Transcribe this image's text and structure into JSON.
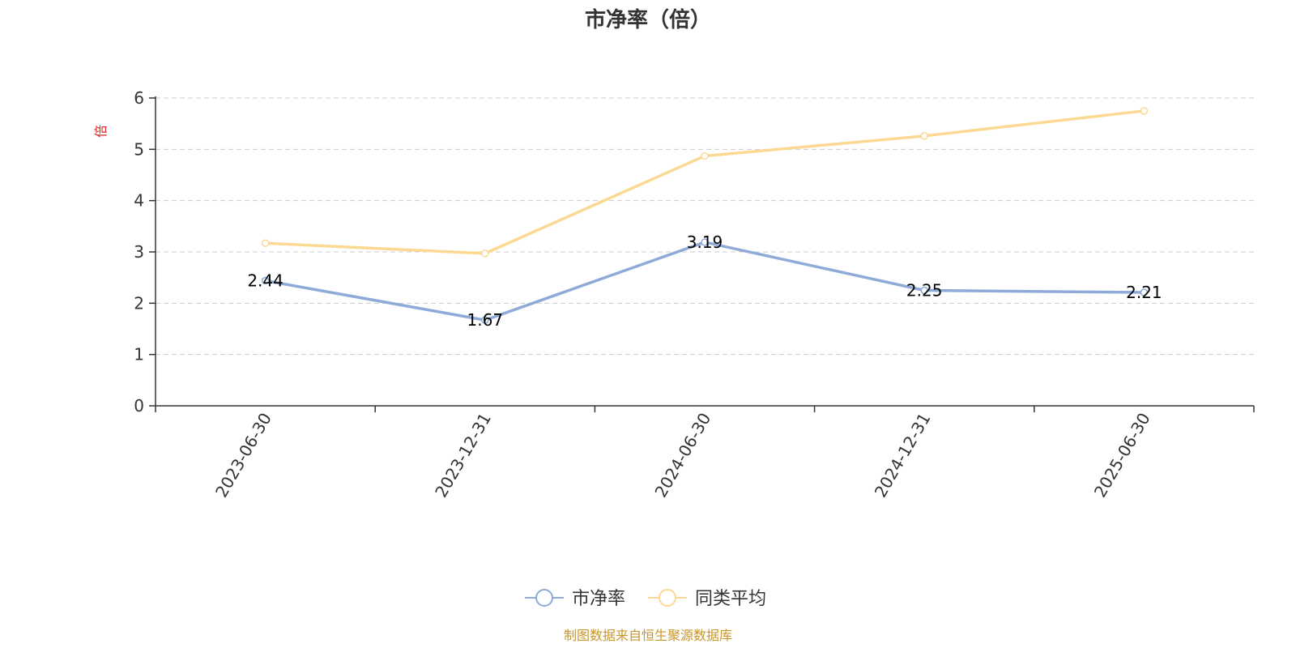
{
  "chart_data": {
    "type": "line",
    "title": "市净率（倍）",
    "ylabel": "倍",
    "xlabel": "",
    "categories": [
      "2023-06-30",
      "2023-12-31",
      "2024-06-30",
      "2024-12-31",
      "2025-06-30"
    ],
    "ylim": [
      0,
      6
    ],
    "yticks": [
      0,
      1,
      2,
      3,
      4,
      5,
      6
    ],
    "grid": true,
    "legend_position": "bottom-center",
    "series": [
      {
        "name": "市净率",
        "values": [
          2.44,
          1.67,
          3.19,
          2.25,
          2.21
        ],
        "labels": [
          "2.44",
          "1.67",
          "3.19",
          "2.25",
          "2.21"
        ],
        "color": "#8eaad8"
      },
      {
        "name": "同类平均",
        "values": [
          3.17,
          2.97,
          4.87,
          5.26,
          5.75
        ],
        "color": "#fbd993"
      }
    ]
  },
  "colors": {
    "axis": "#333333",
    "grid": "#cccccc",
    "ylabel": "#e02020",
    "source": "#c8962c"
  },
  "source_text": "制图数据来自恒生聚源数据库"
}
